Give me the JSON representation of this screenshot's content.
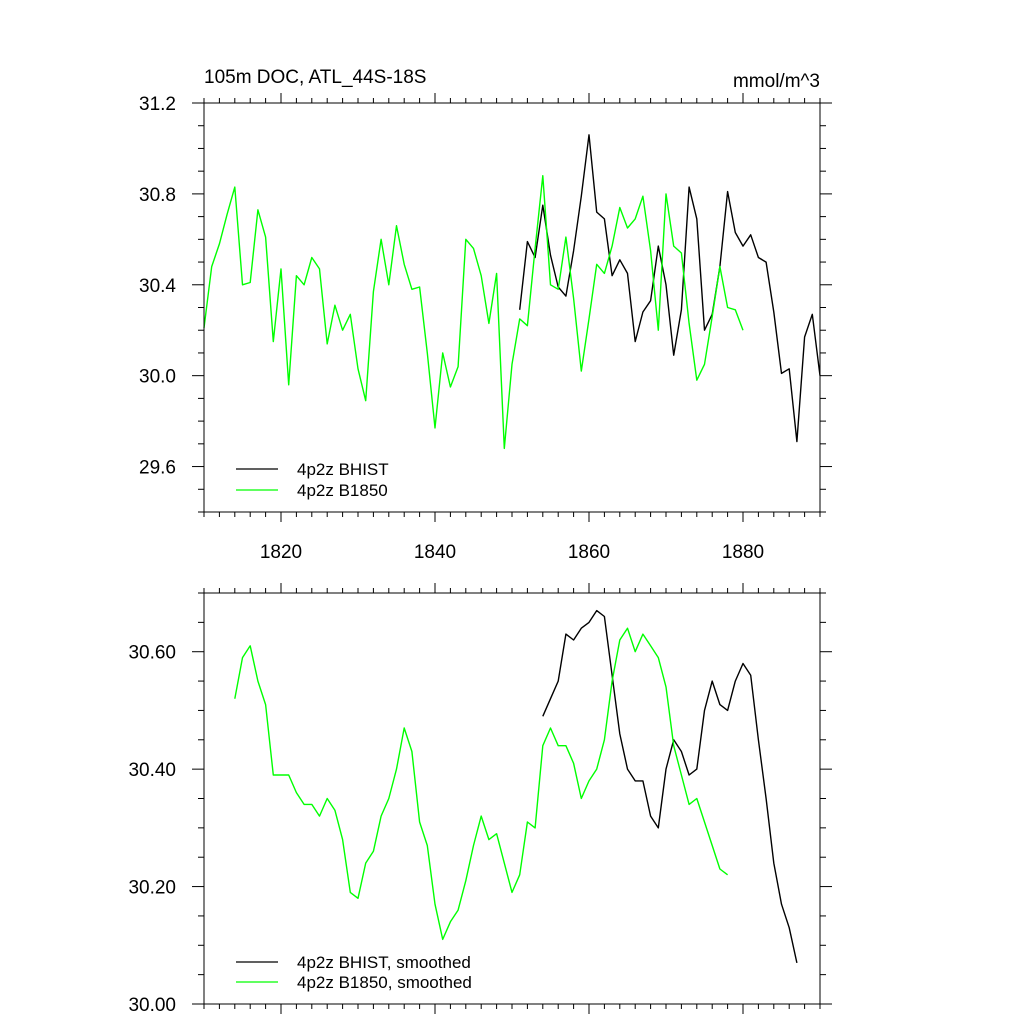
{
  "chart_data": [
    {
      "type": "line",
      "title": "105m DOC, ATL_44S-18S",
      "units": "mmol/m^3",
      "xlim": [
        1810,
        1890
      ],
      "ylim": [
        29.4,
        31.2
      ],
      "x_ticks": [
        1820,
        1840,
        1860,
        1880
      ],
      "x_tick_labels": [
        "1820",
        "1840",
        "1860",
        "1880"
      ],
      "y_ticks": [
        29.6,
        30.0,
        30.4,
        30.8,
        31.2
      ],
      "y_tick_labels": [
        "29.6",
        "30.0",
        "30.4",
        "30.8",
        "31.2"
      ],
      "legend_position": "bottom-left",
      "series": [
        {
          "name": "4p2z BHIST",
          "color": "#000000",
          "x_start": 1851,
          "values": [
            30.29,
            30.59,
            30.52,
            30.75,
            30.53,
            30.39,
            30.35,
            30.55,
            30.79,
            31.06,
            30.72,
            30.69,
            30.44,
            30.51,
            30.45,
            30.15,
            30.28,
            30.33,
            30.57,
            30.4,
            30.09,
            30.29,
            30.83,
            30.69,
            30.2,
            30.27,
            30.48,
            30.81,
            30.63,
            30.57,
            30.62,
            30.52,
            30.5,
            30.28,
            30.01,
            30.03,
            29.71,
            30.17,
            30.27,
            30.0
          ]
        },
        {
          "name": "4p2z B1850",
          "color": "#00ff00",
          "x_start": 1810,
          "values": [
            30.21,
            30.48,
            30.58,
            30.71,
            30.83,
            30.4,
            30.41,
            30.73,
            30.61,
            30.15,
            30.47,
            29.96,
            30.44,
            30.4,
            30.52,
            30.47,
            30.14,
            30.31,
            30.2,
            30.27,
            30.03,
            29.89,
            30.37,
            30.6,
            30.4,
            30.66,
            30.49,
            30.38,
            30.39,
            30.1,
            29.77,
            30.1,
            29.95,
            30.04,
            30.6,
            30.56,
            30.44,
            30.23,
            30.45,
            29.68,
            30.05,
            30.25,
            30.22,
            30.56,
            30.88,
            30.4,
            30.38,
            30.61,
            30.34,
            30.02,
            30.25,
            30.49,
            30.45,
            30.57,
            30.74,
            30.65,
            30.69,
            30.79,
            30.55,
            30.2,
            30.8,
            30.57,
            30.54,
            30.23,
            29.98,
            30.05,
            30.26,
            30.48,
            30.3,
            30.29,
            30.2
          ]
        }
      ]
    },
    {
      "type": "line",
      "xlim": [
        1810,
        1890
      ],
      "ylim": [
        30.0,
        30.7
      ],
      "x_ticks": [
        1820,
        1840,
        1860,
        1880
      ],
      "y_ticks": [
        30.0,
        30.2,
        30.4,
        30.6
      ],
      "y_tick_labels": [
        "30.00",
        "30.20",
        "30.40",
        "30.60"
      ],
      "legend_position": "bottom-left",
      "series": [
        {
          "name": "4p2z BHIST, smoothed",
          "color": "#000000",
          "x_start": 1854,
          "values": [
            30.49,
            30.52,
            30.55,
            30.63,
            30.62,
            30.64,
            30.65,
            30.67,
            30.66,
            30.56,
            30.46,
            30.4,
            30.38,
            30.38,
            30.32,
            30.3,
            30.4,
            30.45,
            30.43,
            30.39,
            30.4,
            30.5,
            30.55,
            30.51,
            30.5,
            30.55,
            30.58,
            30.56,
            30.45,
            30.35,
            30.24,
            30.17,
            30.13,
            30.07
          ]
        },
        {
          "name": "4p2z B1850, smoothed",
          "color": "#00ff00",
          "x_start": 1814,
          "values": [
            30.52,
            30.59,
            30.61,
            30.55,
            30.51,
            30.39,
            30.39,
            30.39,
            30.36,
            30.34,
            30.34,
            30.32,
            30.35,
            30.33,
            30.28,
            30.19,
            30.18,
            30.24,
            30.26,
            30.32,
            30.35,
            30.4,
            30.47,
            30.43,
            30.31,
            30.27,
            30.17,
            30.11,
            30.14,
            30.16,
            30.21,
            30.27,
            30.32,
            30.28,
            30.29,
            30.24,
            30.19,
            30.22,
            30.31,
            30.3,
            30.44,
            30.47,
            30.44,
            30.44,
            30.41,
            30.35,
            30.38,
            30.4,
            30.45,
            30.55,
            30.62,
            30.64,
            30.6,
            30.63,
            30.61,
            30.59,
            30.54,
            30.44,
            30.39,
            30.34,
            30.35,
            30.31,
            30.27,
            30.23,
            30.22
          ]
        }
      ]
    }
  ]
}
